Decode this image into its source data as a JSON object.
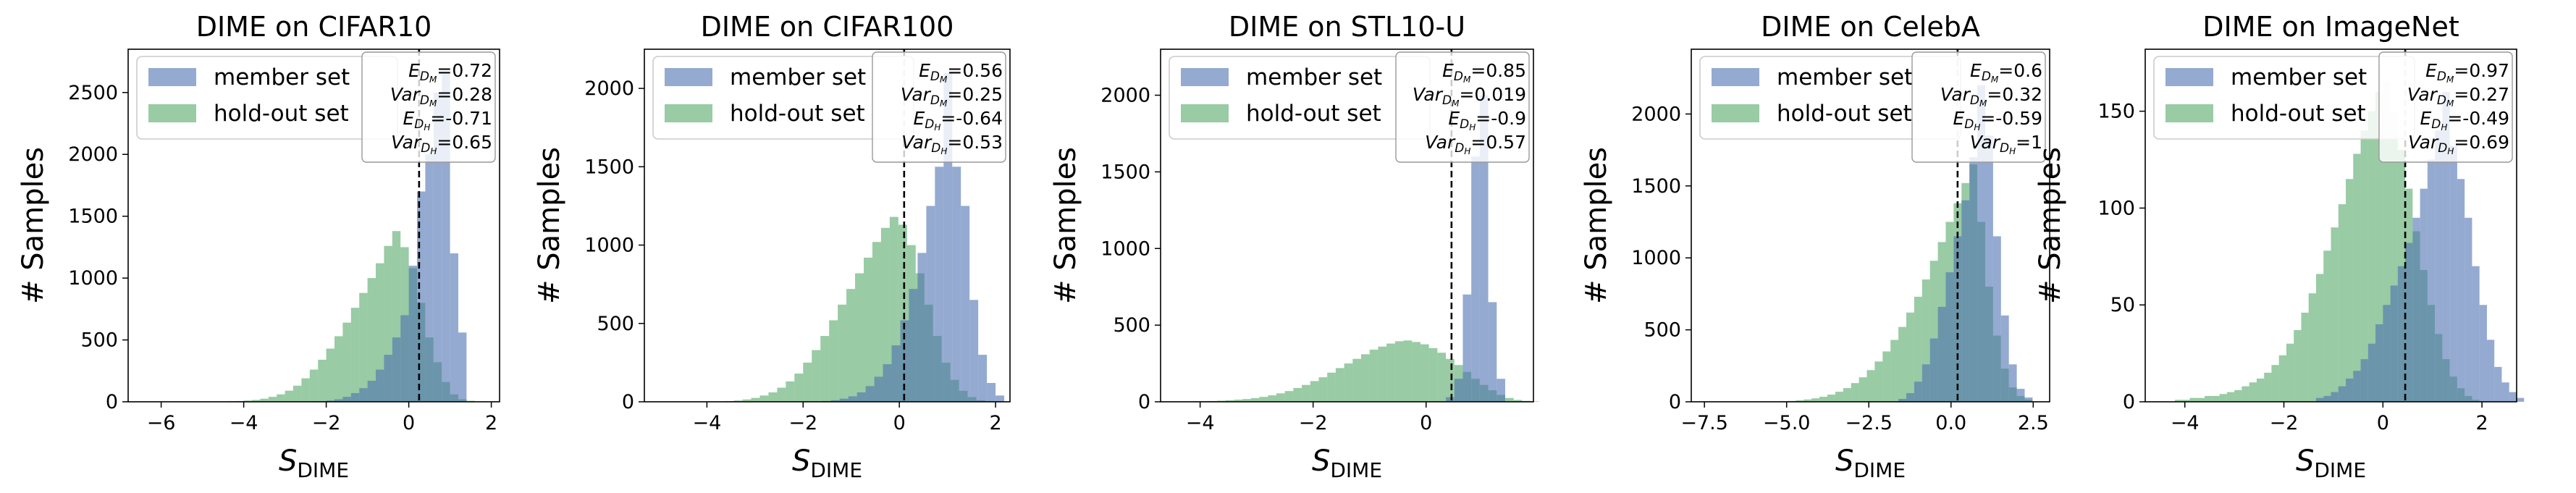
{
  "colors": {
    "member": "#4c72b0",
    "holdout": "#55a868",
    "threshold": "#000000"
  },
  "chart_data": [
    {
      "type": "histogram",
      "title": "DIME on CIFAR10",
      "xlabel": "S_DIME",
      "ylabel": "# Samples",
      "xlim": [
        -6.8,
        2.2
      ],
      "ylim": [
        0,
        2850
      ],
      "xticks": [
        -6,
        -4,
        -2,
        0,
        2
      ],
      "yticks": [
        0,
        500,
        1000,
        1500,
        2000,
        2500
      ],
      "threshold": 0.25,
      "legend": {
        "placement": "upper-left",
        "entries": [
          "member set",
          "hold-out set"
        ]
      },
      "stats": [
        {
          "sym": "E",
          "sub": "D",
          "subsub": "M",
          "value": "=0.72"
        },
        {
          "sym": "Var",
          "sub": "D",
          "subsub": "M",
          "value": "=0.28"
        },
        {
          "sym": "E",
          "sub": "D",
          "subsub": "H",
          "value": "=-0.71"
        },
        {
          "sym": "Var",
          "sub": "D",
          "subsub": "H",
          "value": "=0.65"
        }
      ],
      "bin_width": 0.2,
      "member": {
        "name": "member set",
        "start": -2.2,
        "values": [
          5,
          10,
          20,
          40,
          70,
          110,
          170,
          260,
          380,
          520,
          700,
          1100,
          1700,
          2000,
          2500,
          2650,
          1200,
          560
        ]
      },
      "holdout": {
        "name": "hold-out set",
        "start": -4.6,
        "values": [
          2,
          4,
          6,
          10,
          15,
          25,
          40,
          60,
          90,
          130,
          190,
          260,
          340,
          430,
          530,
          640,
          760,
          880,
          1000,
          1120,
          1260,
          1380,
          1250,
          1080,
          800,
          520,
          320,
          160,
          60,
          20,
          8
        ]
      }
    },
    {
      "type": "histogram",
      "title": "DIME on CIFAR100",
      "xlabel": "S_DIME",
      "ylabel": "# Samples",
      "xlim": [
        -5.3,
        2.3
      ],
      "ylim": [
        0,
        2250
      ],
      "xticks": [
        -4,
        -2,
        0,
        2
      ],
      "yticks": [
        0,
        500,
        1000,
        1500,
        2000
      ],
      "threshold": 0.1,
      "legend": {
        "placement": "upper-left",
        "entries": [
          "member set",
          "hold-out set"
        ]
      },
      "stats": [
        {
          "sym": "E",
          "sub": "D",
          "subsub": "M",
          "value": "=0.56"
        },
        {
          "sym": "Var",
          "sub": "D",
          "subsub": "M",
          "value": "=0.25"
        },
        {
          "sym": "E",
          "sub": "D",
          "subsub": "H",
          "value": "=-0.64"
        },
        {
          "sym": "Var",
          "sub": "D",
          "subsub": "H",
          "value": "=0.53"
        }
      ],
      "bin_width": 0.18,
      "member": {
        "name": "member set",
        "start": -1.6,
        "values": [
          5,
          10,
          20,
          35,
          60,
          100,
          160,
          240,
          360,
          520,
          720,
          950,
          1250,
          1500,
          2100,
          1500,
          1250,
          650,
          300,
          120,
          40
        ]
      },
      "holdout": {
        "name": "hold-out set",
        "start": -3.8,
        "values": [
          2,
          4,
          8,
          15,
          25,
          40,
          60,
          90,
          130,
          180,
          250,
          330,
          420,
          520,
          620,
          720,
          820,
          920,
          1020,
          1110,
          1180,
          1130,
          1000,
          820,
          620,
          420,
          250,
          140,
          70,
          30,
          10,
          5
        ]
      }
    },
    {
      "type": "histogram",
      "title": "DIME on STL10-U",
      "xlabel": "S_DIME",
      "ylabel": "# Samples",
      "xlim": [
        -4.7,
        1.9
      ],
      "ylim": [
        0,
        2300
      ],
      "xticks": [
        -4,
        -2,
        0
      ],
      "yticks": [
        0,
        500,
        1000,
        1500,
        2000
      ],
      "threshold": 0.45,
      "legend": {
        "placement": "upper-left",
        "entries": [
          "member set",
          "hold-out set"
        ]
      },
      "stats": [
        {
          "sym": "E",
          "sub": "D",
          "subsub": "M",
          "value": "=0.85"
        },
        {
          "sym": "Var",
          "sub": "D",
          "subsub": "M",
          "value": "=0.019"
        },
        {
          "sym": "E",
          "sub": "D",
          "subsub": "H",
          "value": "=-0.9"
        },
        {
          "sym": "Var",
          "sub": "D",
          "subsub": "H",
          "value": "=0.57"
        }
      ],
      "bin_width": 0.15,
      "member": {
        "name": "member set",
        "start": 0.35,
        "values": [
          30,
          150,
          700,
          1600,
          2000,
          650,
          150
        ]
      },
      "holdout": {
        "name": "hold-out set",
        "start": -4.3,
        "values": [
          2,
          3,
          4,
          5,
          7,
          10,
          14,
          18,
          24,
          32,
          42,
          55,
          70,
          90,
          110,
          135,
          160,
          190,
          220,
          250,
          280,
          310,
          340,
          360,
          380,
          395,
          400,
          390,
          375,
          350,
          320,
          280,
          240,
          195,
          150,
          110,
          75,
          45,
          25,
          12,
          6,
          3
        ]
      }
    },
    {
      "type": "histogram",
      "title": "DIME on CelebA",
      "xlabel": "S_DIME",
      "ylabel": "# Samples",
      "xlim": [
        -7.9,
        3.0
      ],
      "ylim": [
        0,
        2450
      ],
      "xticks": [
        -7.5,
        -5.0,
        -2.5,
        0.0,
        2.5
      ],
      "yticks": [
        0,
        500,
        1000,
        1500,
        2000
      ],
      "threshold": 0.2,
      "legend": {
        "placement": "upper-left",
        "entries": [
          "member set",
          "hold-out set"
        ]
      },
      "stats": [
        {
          "sym": "E",
          "sub": "D",
          "subsub": "M",
          "value": "=0.6"
        },
        {
          "sym": "Var",
          "sub": "D",
          "subsub": "M",
          "value": "=0.32"
        },
        {
          "sym": "E",
          "sub": "D",
          "subsub": "H",
          "value": "=-0.59"
        },
        {
          "sym": "Var",
          "sub": "D",
          "subsub": "H",
          "value": "=1"
        }
      ],
      "bin_width": 0.24,
      "member": {
        "name": "member set",
        "start": -1.6,
        "values": [
          20,
          60,
          140,
          260,
          440,
          660,
          900,
          1150,
          1400,
          1700,
          2200,
          1850,
          1150,
          600,
          260,
          90,
          30
        ]
      },
      "holdout": {
        "name": "hold-out set",
        "start": -5.2,
        "values": [
          4,
          6,
          10,
          16,
          24,
          35,
          50,
          70,
          95,
          130,
          170,
          220,
          280,
          350,
          430,
          520,
          620,
          730,
          850,
          980,
          1110,
          1250,
          1380,
          1520,
          1650,
          1250,
          800,
          460,
          230,
          100,
          40,
          15
        ]
      }
    },
    {
      "type": "histogram",
      "title": "DIME on ImageNet",
      "xlabel": "S_DIME",
      "ylabel": "# Samples",
      "xlim": [
        -4.8,
        2.7
      ],
      "ylim": [
        0,
        182
      ],
      "xticks": [
        -4,
        -2,
        0,
        2
      ],
      "yticks": [
        0,
        50,
        100,
        150
      ],
      "threshold": 0.45,
      "legend": {
        "placement": "upper-left",
        "entries": [
          "member set",
          "hold-out set"
        ]
      },
      "stats": [
        {
          "sym": "E",
          "sub": "D",
          "subsub": "M",
          "value": "=0.97"
        },
        {
          "sym": "Var",
          "sub": "D",
          "subsub": "M",
          "value": "=0.27"
        },
        {
          "sym": "E",
          "sub": "D",
          "subsub": "H",
          "value": "=-0.49"
        },
        {
          "sym": "Var",
          "sub": "D",
          "subsub": "H",
          "value": "=0.69"
        }
      ],
      "bin_width": 0.15,
      "member": {
        "name": "member set",
        "start": -1.35,
        "values": [
          2,
          3,
          5,
          8,
          12,
          16,
          22,
          30,
          40,
          50,
          60,
          70,
          82,
          95,
          110,
          125,
          140,
          160,
          132,
          115,
          95,
          70,
          50,
          32,
          18,
          10,
          5,
          2
        ]
      },
      "holdout": {
        "name": "hold-out set",
        "start": -4.2,
        "values": [
          1,
          1,
          2,
          2,
          3,
          3,
          4,
          5,
          6,
          8,
          10,
          12,
          15,
          19,
          24,
          30,
          37,
          46,
          56,
          66,
          78,
          90,
          102,
          115,
          128,
          140,
          150,
          160,
          165,
          150,
          130,
          110,
          88,
          68,
          50,
          35,
          22,
          13,
          7,
          3,
          1
        ]
      }
    }
  ]
}
